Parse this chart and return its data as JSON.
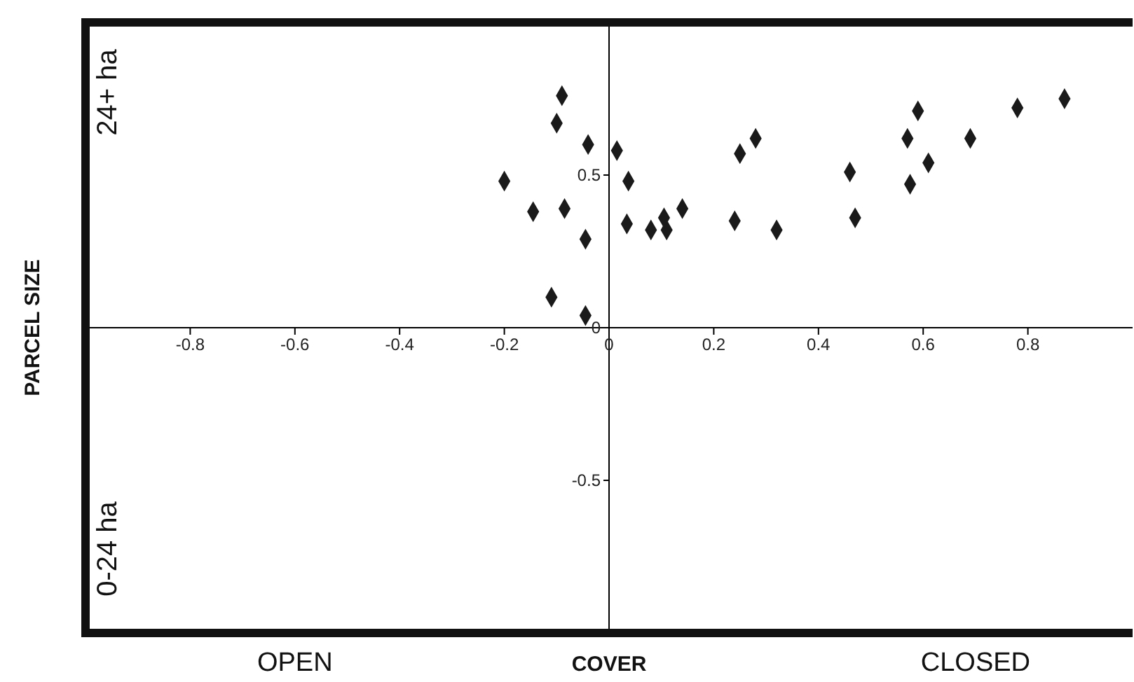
{
  "chart_data": {
    "type": "scatter",
    "xlabel": "COVER",
    "ylabel": "PARCEL SIZE",
    "annotations": [
      "24+ ha",
      "0-24 ha",
      "OPEN",
      "CLOSED"
    ],
    "x": [
      -0.2,
      -0.145,
      -0.09,
      -0.1,
      -0.085,
      -0.04,
      -0.045,
      -0.11,
      -0.045,
      0.015,
      0.037,
      0.034,
      0.08,
      0.11,
      0.105,
      0.14,
      0.24,
      0.25,
      0.28,
      0.32,
      0.46,
      0.47,
      0.57,
      0.59,
      0.575,
      0.61,
      0.69,
      0.78,
      0.87
    ],
    "series": [
      {
        "color": "#1a1a1a",
        "values": [
          0.48,
          0.38,
          0.76,
          0.67,
          0.39,
          0.6,
          0.29,
          0.1,
          0.04,
          0.58,
          0.48,
          0.34,
          0.32,
          0.32,
          0.36,
          0.39,
          0.35,
          0.57,
          0.62,
          0.32,
          0.51,
          0.36,
          0.62,
          0.71,
          0.47,
          0.54,
          0.62,
          0.72,
          0.75
        ]
      }
    ],
    "xlim": [
      -1,
      1
    ],
    "ylim": [
      -1,
      1
    ],
    "xticks": [
      -0.8,
      -0.6,
      -0.4,
      -0.2,
      0,
      0.2,
      0.4,
      0.6,
      0.8
    ],
    "yticks": [
      -0.5,
      0,
      0.5
    ],
    "marker": "diamond",
    "grid": false,
    "legend": false
  }
}
